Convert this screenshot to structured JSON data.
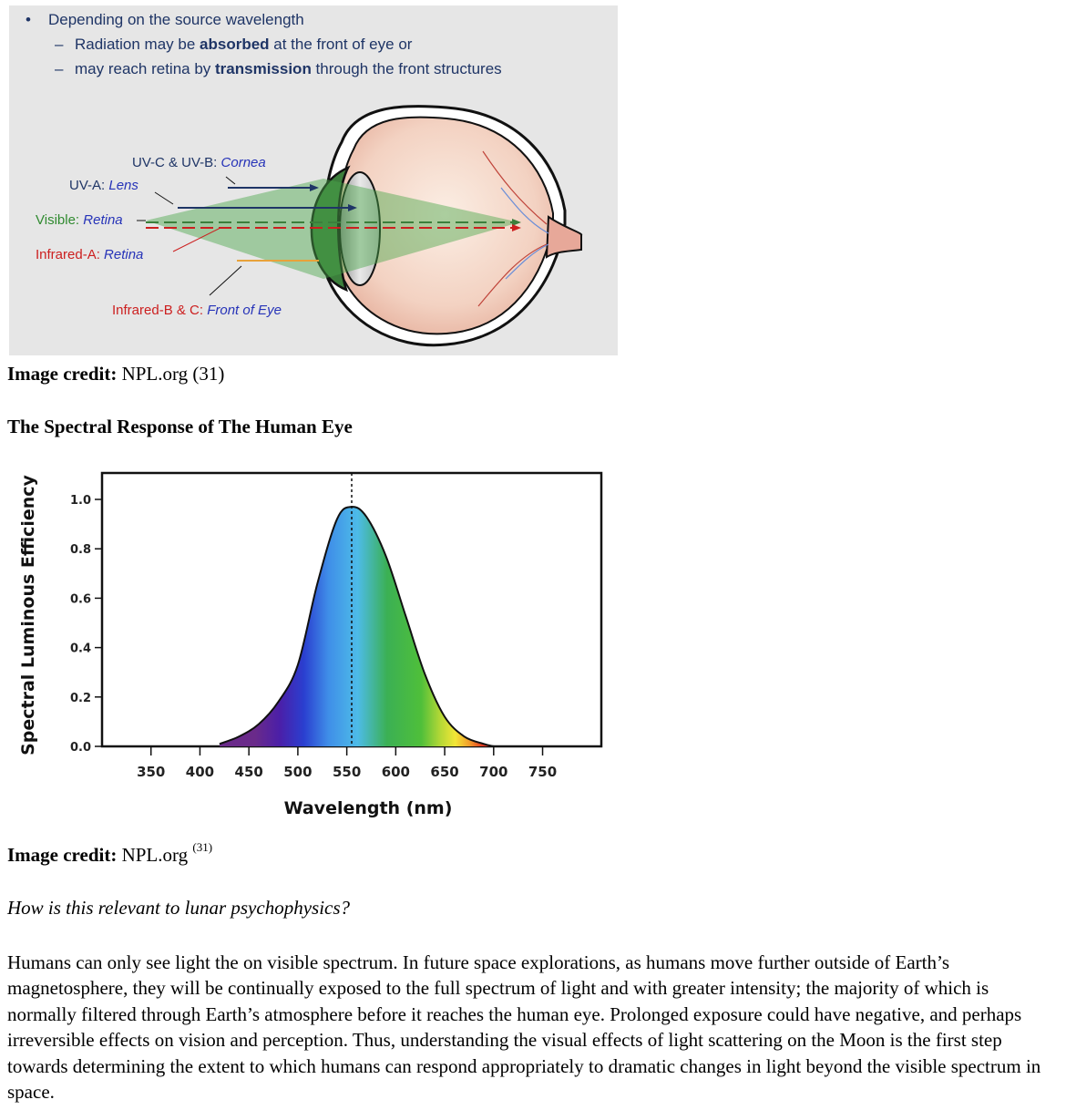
{
  "eye_figure": {
    "bullet_marker": "•",
    "dash_marker": "–",
    "bullet_main": "Depending on the source wavelength",
    "sub1_before": "Radiation may be ",
    "sub1_bold": "absorbed",
    "sub1_after": " at the front of eye or",
    "sub2_before": "may reach retina by ",
    "sub2_bold": "transmission",
    "sub2_after": " through the front structures",
    "labels": {
      "uvc_name": "UV-C & UV-B: ",
      "uvc_part": "Cornea",
      "uva_name": "UV-A: ",
      "uva_part": "Lens",
      "vis_name": "Visible: ",
      "vis_part": "Retina",
      "ira_name": "Infrared-A: ",
      "ira_part": "Retina",
      "irb_name": "Infrared-B & C: ",
      "irb_part": "Front of Eye"
    },
    "colors": {
      "uvc": "#1f3566",
      "uva": "#1f3566",
      "visible": "#2f8a2f",
      "infrared": "#cc1f1f",
      "ir_line": "#e8a23a"
    }
  },
  "credit1": {
    "label": "Image credit:",
    "text": " NPL.org (31)"
  },
  "section_title": "The Spectral Response of The Human Eye",
  "chart_data": {
    "type": "area",
    "xlabel": "Wavelength (nm)",
    "ylabel": "Spectral Luminous Efficiency",
    "xlim": [
      300,
      810
    ],
    "ylim": [
      0,
      1.0
    ],
    "xticks": [
      350,
      400,
      450,
      500,
      550,
      600,
      650,
      700,
      750
    ],
    "yticks": [
      "0.0",
      "0.2",
      "0.4",
      "0.6",
      "0.8",
      "1.0"
    ],
    "peak_wavelength": 555,
    "x": [
      420,
      440,
      460,
      480,
      500,
      520,
      540,
      555,
      570,
      590,
      610,
      630,
      650,
      670,
      690,
      700
    ],
    "y": [
      0.01,
      0.04,
      0.09,
      0.18,
      0.33,
      0.66,
      0.92,
      0.97,
      0.93,
      0.77,
      0.53,
      0.29,
      0.12,
      0.04,
      0.01,
      0.0
    ]
  },
  "credit2": {
    "label": "Image credit:",
    "text": " NPL.org ",
    "sup": "(31)"
  },
  "question": "How is this relevant to lunar psychophysics?",
  "paragraph": "Humans can only see light the on visible spectrum. In future space explorations, as humans move further outside of Earth’s magnetosphere, they will be continually exposed to the full spectrum of light and with greater intensity; the majority of which is normally filtered through Earth’s atmosphere before it reaches the human eye. Prolonged exposure could have negative, and perhaps irreversible effects on vision and perception. Thus, understanding the visual effects of light scattering on the Moon is the first step towards determining the extent to which humans can respond appropriately to dramatic changes in light beyond the visible spectrum in space."
}
